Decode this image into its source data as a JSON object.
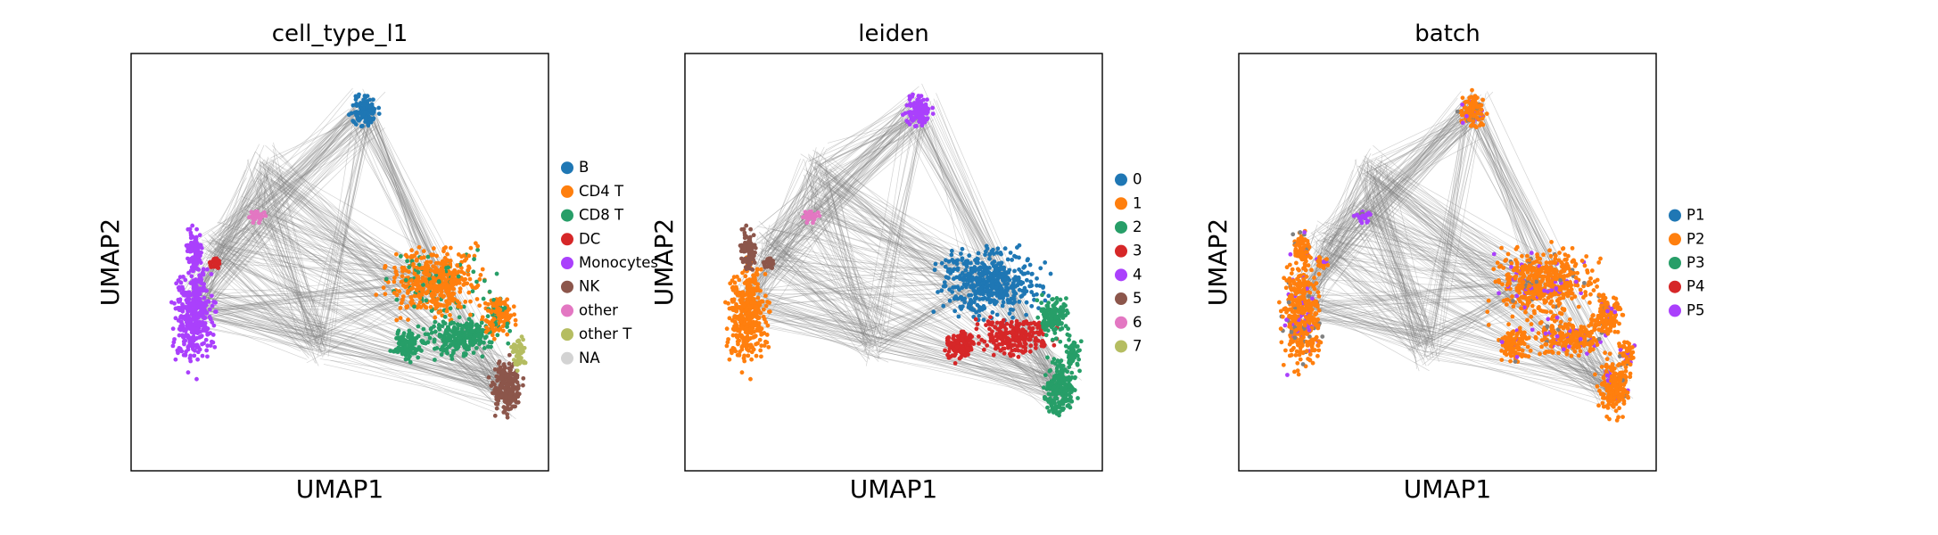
{
  "figure": {
    "background": "#ffffff"
  },
  "chart_data": [
    {
      "type": "scatter",
      "title": "cell_type_l1",
      "xlabel": "UMAP1",
      "ylabel": "UMAP2",
      "grid": false,
      "axis_ticks": false,
      "legend_placement": "right",
      "edges": "grey graph connections drawn beneath points",
      "legend": [
        {
          "label": "B",
          "color": "#1f77b4"
        },
        {
          "label": "CD4 T",
          "color": "#ff7f0e"
        },
        {
          "label": "CD8 T",
          "color": "#279e68"
        },
        {
          "label": "DC",
          "color": "#d62728"
        },
        {
          "label": "Monocytes",
          "color": "#aa40fc"
        },
        {
          "label": "NK",
          "color": "#8c564b"
        },
        {
          "label": "other",
          "color": "#e377c2"
        },
        {
          "label": "other T",
          "color": "#b5bd61"
        },
        {
          "label": "NA",
          "color": "#d3d3d3"
        }
      ]
    },
    {
      "type": "scatter",
      "title": "leiden",
      "xlabel": "UMAP1",
      "ylabel": "UMAP2",
      "grid": false,
      "axis_ticks": false,
      "legend_placement": "right",
      "edges": "grey graph connections drawn beneath points",
      "legend": [
        {
          "label": "0",
          "color": "#1f77b4"
        },
        {
          "label": "1",
          "color": "#ff7f0e"
        },
        {
          "label": "2",
          "color": "#279e68"
        },
        {
          "label": "3",
          "color": "#d62728"
        },
        {
          "label": "4",
          "color": "#aa40fc"
        },
        {
          "label": "5",
          "color": "#8c564b"
        },
        {
          "label": "6",
          "color": "#e377c2"
        },
        {
          "label": "7",
          "color": "#b5bd61"
        }
      ]
    },
    {
      "type": "scatter",
      "title": "batch",
      "xlabel": "UMAP1",
      "ylabel": "UMAP2",
      "grid": false,
      "axis_ticks": false,
      "legend_placement": "right",
      "edges": "grey graph connections drawn beneath points",
      "legend": [
        {
          "label": "P1",
          "color": "#1f77b4"
        },
        {
          "label": "P2",
          "color": "#ff7f0e"
        },
        {
          "label": "P3",
          "color": "#279e68"
        },
        {
          "label": "P4",
          "color": "#d62728"
        },
        {
          "label": "P5",
          "color": "#aa40fc"
        }
      ]
    }
  ]
}
